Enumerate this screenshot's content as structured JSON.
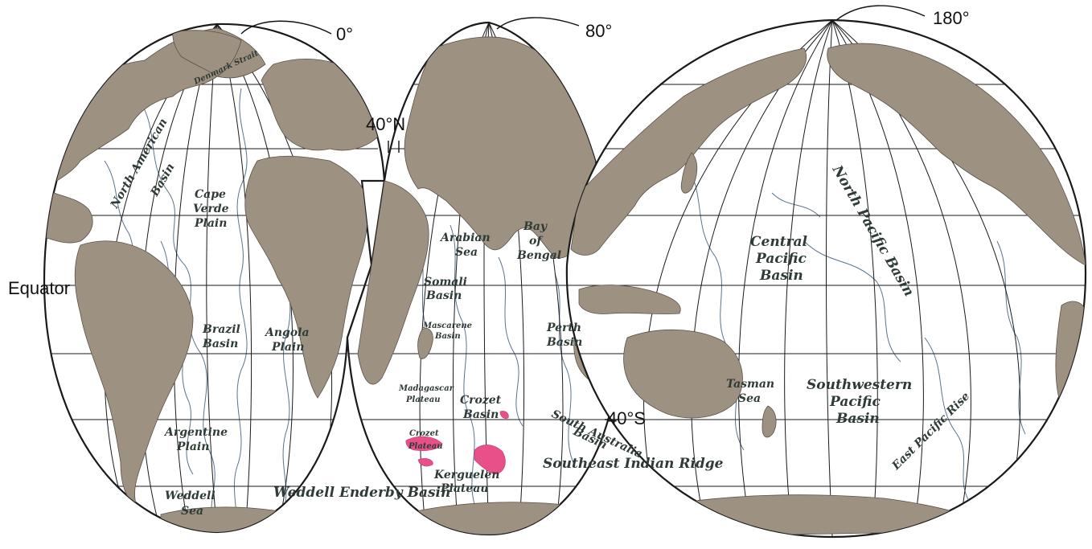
{
  "meridians": {
    "m0": "0°",
    "m80": "80°",
    "m180": "180°"
  },
  "latitudes": {
    "n40": "40°N",
    "s40": "40°S",
    "equator": "Equator"
  },
  "labels": {
    "denmark_strait": "Denmark Strait",
    "north_american_basin_1": "North American",
    "north_american_basin_2": "Basin",
    "cape_verde_1": "Cape",
    "cape_verde_2": "Verde",
    "cape_verde_3": "Plain",
    "brazil_1": "Brazil",
    "brazil_2": "Basin",
    "angola_1": "Angola",
    "angola_2": "Plain",
    "argentine_1": "Argentine",
    "argentine_2": "Plain",
    "weddell_1": "Weddell",
    "weddell_2": "Sea",
    "weddell_enderby": "Weddell Enderby Basin",
    "arabian_1": "Arabian",
    "arabian_2": "Sea",
    "bengal_1": "Bay",
    "bengal_2": "of",
    "bengal_3": "Bengal",
    "somali_1": "Somali",
    "somali_2": "Basin",
    "mascarene_1": "Mascarene",
    "mascarene_2": "Basin",
    "perth_1": "Perth",
    "perth_2": "Basin",
    "madagascar_1": "Madagascar",
    "madagascar_2": "Plateau",
    "crozet_basin_1": "Crozet",
    "crozet_basin_2": "Basin",
    "crozet_plateau_1": "Crozet",
    "crozet_plateau_2": "Plateau",
    "kerguelen_1": "Kerguelen",
    "kerguelen_2": "Plateau",
    "south_australia_1": "South Australia",
    "south_australia_2": "Basin",
    "se_indian_ridge": "Southeast Indian Ridge",
    "north_pacific": "North Pacific Basin",
    "central_pacific_1": "Central",
    "central_pacific_2": "Pacific",
    "central_pacific_3": "Basin",
    "tasman_1": "Tasman",
    "tasman_2": "Sea",
    "sw_pacific_1": "Southwestern",
    "sw_pacific_2": "Pacific",
    "sw_pacific_3": "Basin",
    "east_pacific_rise": "East Pacific Rise"
  },
  "colors": {
    "land": "#9d9181",
    "ocean": "#ffffff",
    "highlight": "#e8508a",
    "bathymetry": "#3c5a7a"
  }
}
